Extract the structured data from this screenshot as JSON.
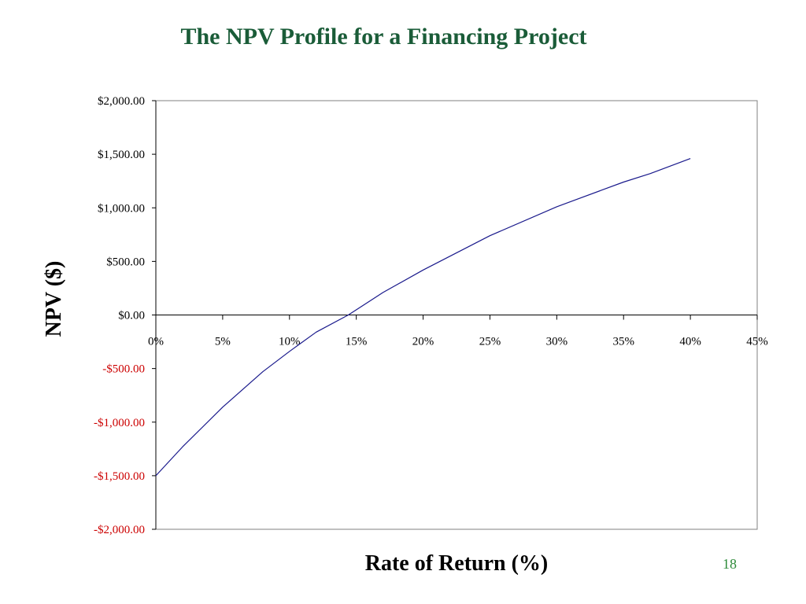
{
  "slide": {
    "title": "The NPV Profile for a Financing Project",
    "page_number": "18"
  },
  "colors": {
    "title": "#1a5c38",
    "line": "#1a1a8c",
    "negative_tick": "#cc0000",
    "page_number": "#2e8b3a"
  },
  "chart_data": {
    "type": "line",
    "title": "The NPV Profile for a Financing Project",
    "xlabel": "Rate of Return (%)",
    "ylabel": "NPV ($)",
    "xlim": [
      0,
      45
    ],
    "ylim": [
      -2000,
      2000
    ],
    "x_tick_labels": [
      "0%",
      "5%",
      "10%",
      "15%",
      "20%",
      "25%",
      "30%",
      "35%",
      "40%",
      "45%"
    ],
    "y_tick_labels": [
      "$2,000.00",
      "$1,500.00",
      "$1,000.00",
      "$500.00",
      "$0.00",
      "-$500.00",
      "-$1,000.00",
      "-$1,500.00",
      "-$2,000.00"
    ],
    "grid": false,
    "legend": "none",
    "series": [
      {
        "x": [
          0,
          2,
          5,
          8,
          10,
          12,
          14.4,
          17,
          20,
          25,
          30,
          35,
          37,
          40
        ],
        "values": [
          -1500,
          -1230,
          -860,
          -530,
          -340,
          -160,
          0,
          210,
          420,
          740,
          1010,
          1240,
          1320,
          1460
        ]
      }
    ]
  }
}
